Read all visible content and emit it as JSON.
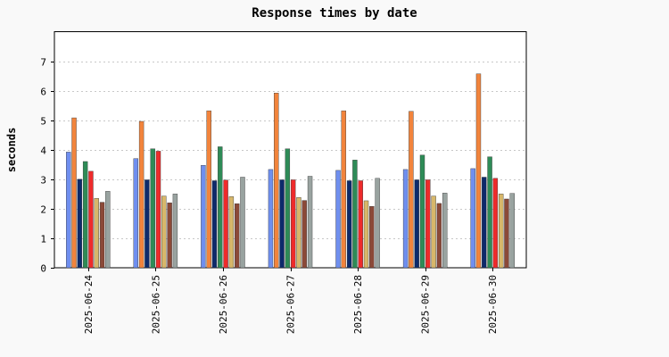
{
  "chart_data": {
    "type": "bar",
    "title": "Response times by date",
    "ylabel": "seconds",
    "xlabel": "",
    "ylim": [
      0,
      8
    ],
    "yticks": [
      0,
      1,
      2,
      3,
      4,
      5,
      6,
      7
    ],
    "grid": true,
    "categories": [
      "2025-06-24",
      "2025-06-25",
      "2025-06-26",
      "2025-06-27",
      "2025-06-28",
      "2025-06-29",
      "2025-06-30"
    ],
    "series": [
      {
        "color": "#6f8fef",
        "values": [
          3.92,
          3.7,
          3.47,
          3.33,
          3.3,
          3.33,
          3.36
        ]
      },
      {
        "color": "#f2843c",
        "values": [
          5.08,
          4.96,
          5.32,
          5.92,
          5.32,
          5.3,
          6.57
        ]
      },
      {
        "color": "#0d2a6b",
        "values": [
          3.0,
          2.98,
          2.95,
          2.98,
          2.95,
          2.98,
          3.07
        ]
      },
      {
        "color": "#2e8b57",
        "values": [
          3.6,
          4.03,
          4.1,
          4.03,
          3.65,
          3.82,
          3.76
        ]
      },
      {
        "color": "#ee2b2b",
        "values": [
          3.27,
          3.95,
          2.97,
          2.98,
          2.95,
          2.98,
          3.03
        ]
      },
      {
        "color": "#d7b76a",
        "values": [
          2.35,
          2.43,
          2.41,
          2.38,
          2.27,
          2.43,
          2.5
        ]
      },
      {
        "color": "#8b4938",
        "values": [
          2.22,
          2.2,
          2.17,
          2.28,
          2.08,
          2.18,
          2.33
        ]
      },
      {
        "color": "#99a3a0",
        "values": [
          2.59,
          2.5,
          3.07,
          3.1,
          3.03,
          2.53,
          2.52
        ]
      }
    ]
  }
}
